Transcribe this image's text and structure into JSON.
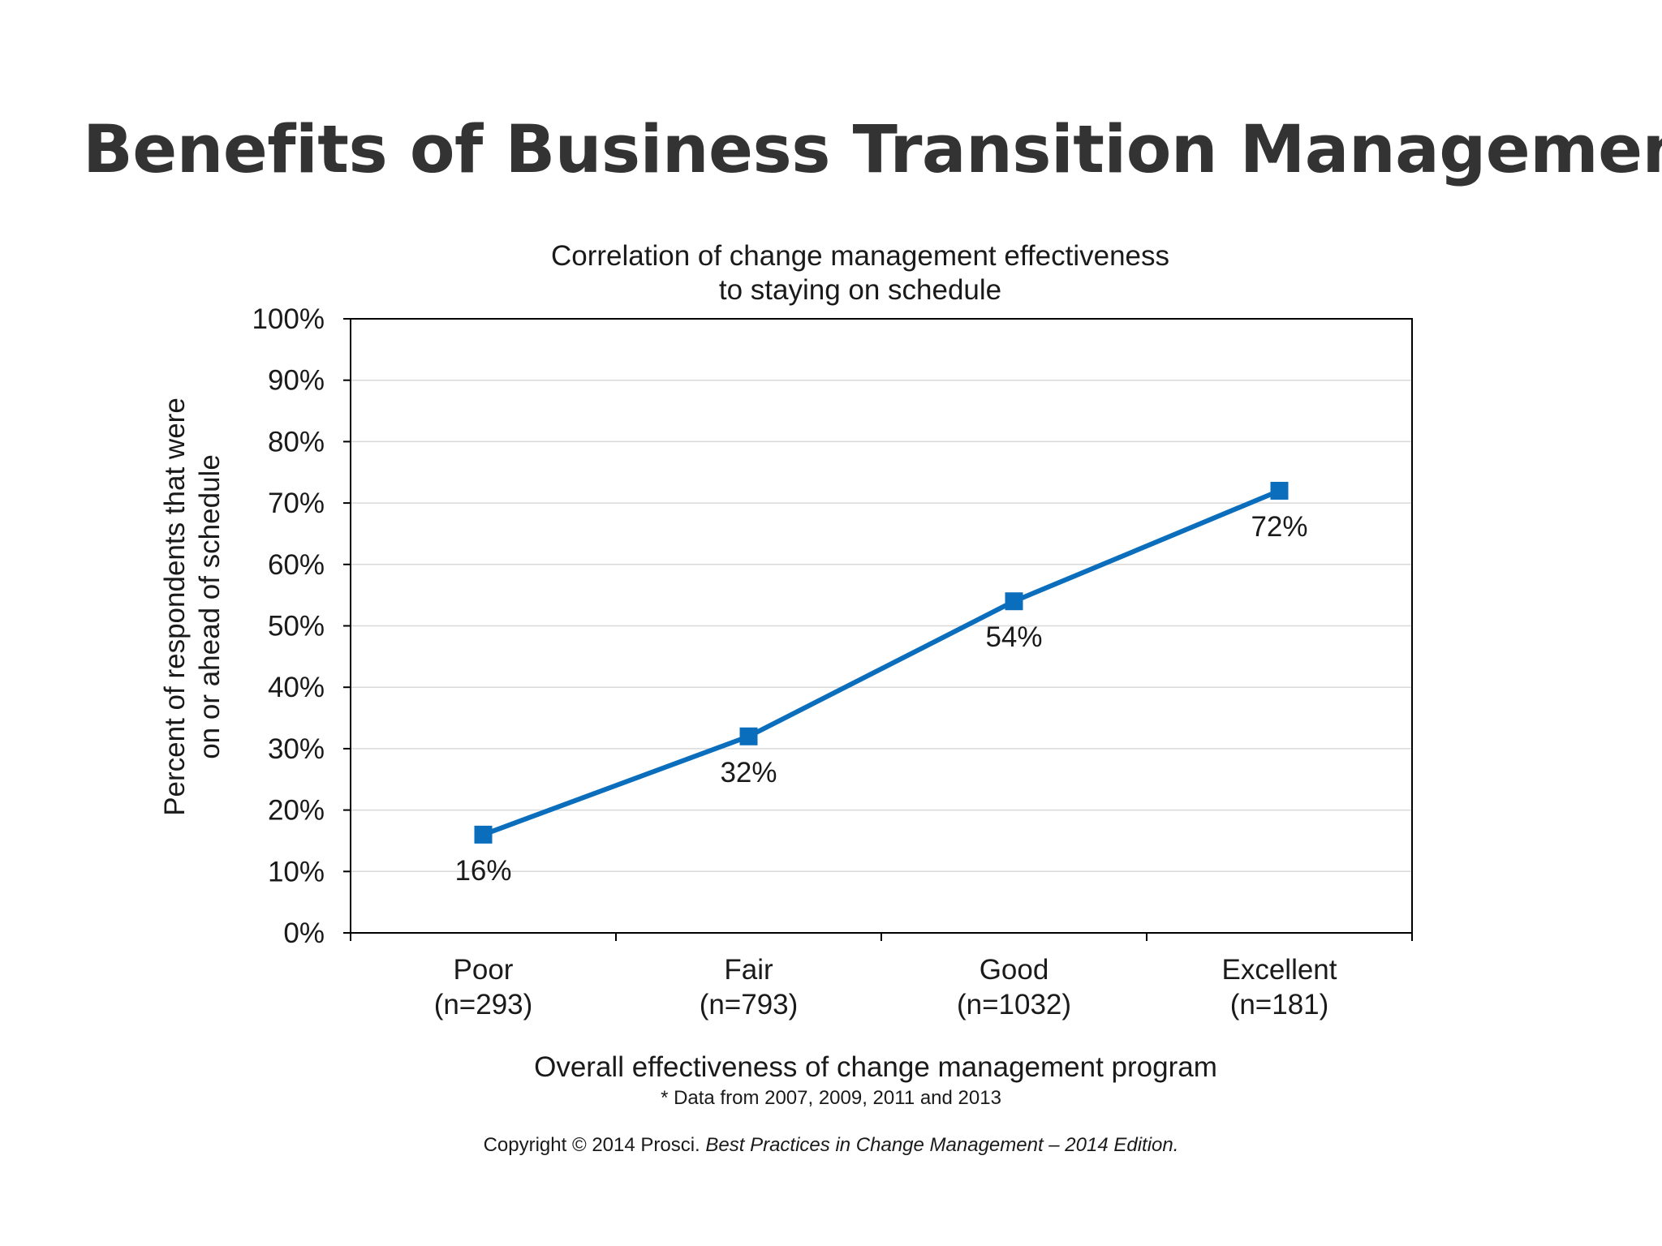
{
  "slide": {
    "title": "Benefits of Business Transition Management",
    "footnote": "* Data from 2007, 2009, 2011 and 2013",
    "copyright_prefix": "Copyright © 2014 Prosci. ",
    "copyright_publication": "Best Practices in Change Management – 2014 Edition."
  },
  "chart_data": {
    "type": "line",
    "title_lines": [
      "Correlation of change management effectiveness",
      "to staying on schedule"
    ],
    "categories": [
      {
        "name": "Poor",
        "n": "(n=293)"
      },
      {
        "name": "Fair",
        "n": "(n=793)"
      },
      {
        "name": "Good",
        "n": "(n=1032)"
      },
      {
        "name": "Excellent",
        "n": "(n=181)"
      }
    ],
    "series": [
      {
        "name": "Percent on or ahead of schedule",
        "values": [
          16,
          32,
          54,
          72
        ],
        "labels": [
          "16%",
          "32%",
          "54%",
          "72%"
        ]
      }
    ],
    "xlabel": "Overall effectiveness of change management program",
    "ylabel_lines": [
      "Percent of respondents that were",
      "on or ahead of schedule"
    ],
    "ylim": [
      0,
      100
    ],
    "yticks": [
      0,
      10,
      20,
      30,
      40,
      50,
      60,
      70,
      80,
      90,
      100
    ],
    "ytick_labels": [
      "0%",
      "10%",
      "20%",
      "30%",
      "40%",
      "50%",
      "60%",
      "70%",
      "80%",
      "90%",
      "100%"
    ],
    "grid": true,
    "colors": {
      "line": "#0a6ebd",
      "marker": "#0a6ebd",
      "grid": "#d9d9d9",
      "frame": "#000000"
    }
  }
}
